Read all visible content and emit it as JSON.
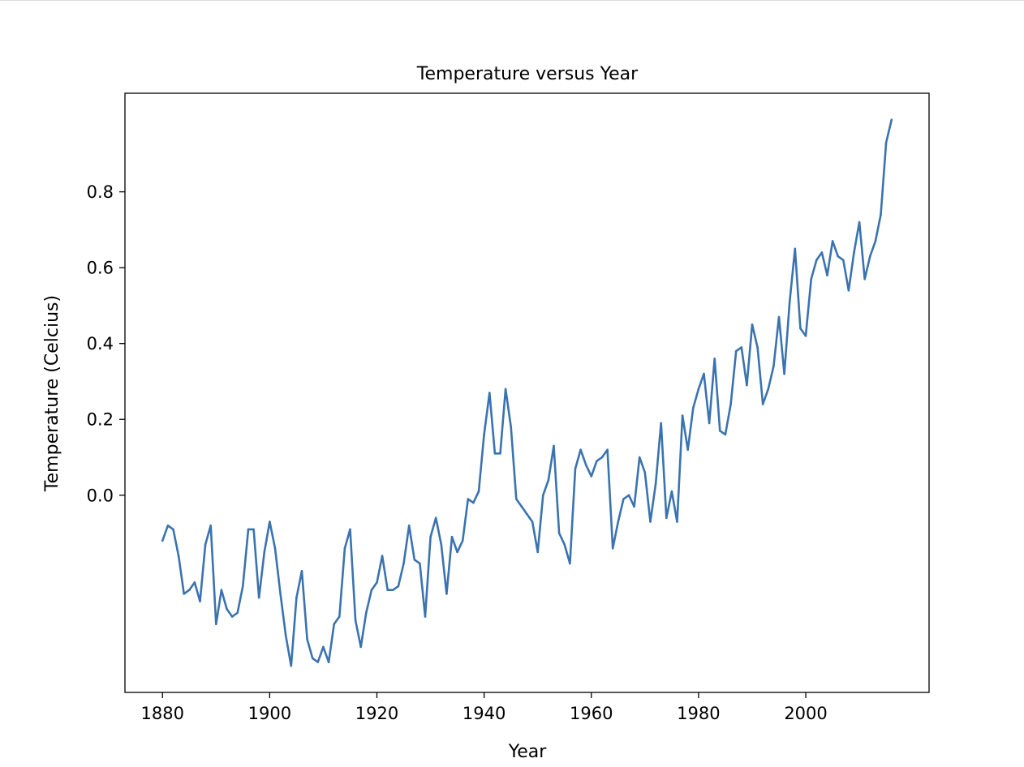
{
  "chart_data": {
    "type": "line",
    "title": "Temperature versus Year",
    "xlabel": "Year",
    "ylabel": "Temperature (Celcius)",
    "xlim": [
      1873,
      2023
    ],
    "ylim": [
      -0.52,
      1.06
    ],
    "x_ticks": [
      1880,
      1900,
      1920,
      1940,
      1960,
      1980,
      2000
    ],
    "x_tick_labels": [
      "1880",
      "1900",
      "1920",
      "1940",
      "1960",
      "1980",
      "2000"
    ],
    "y_ticks": [
      0.0,
      0.2,
      0.4,
      0.6,
      0.8
    ],
    "y_tick_labels": [
      "0.0",
      "0.2",
      "0.4",
      "0.6",
      "0.8"
    ],
    "grid": false,
    "colors": {
      "line": "#3a73b0",
      "axes": "#000000"
    },
    "series": [
      {
        "x": [
          1880,
          1881,
          1882,
          1883,
          1884,
          1885,
          1886,
          1887,
          1888,
          1889,
          1890,
          1891,
          1892,
          1893,
          1894,
          1895,
          1896,
          1897,
          1898,
          1899,
          1900,
          1901,
          1902,
          1903,
          1904,
          1905,
          1906,
          1907,
          1908,
          1909,
          1910,
          1911,
          1912,
          1913,
          1914,
          1915,
          1916,
          1917,
          1918,
          1919,
          1920,
          1921,
          1922,
          1923,
          1924,
          1925,
          1926,
          1927,
          1928,
          1929,
          1930,
          1931,
          1932,
          1933,
          1934,
          1935,
          1936,
          1937,
          1938,
          1939,
          1940,
          1941,
          1942,
          1943,
          1944,
          1945,
          1946,
          1947,
          1948,
          1949,
          1950,
          1951,
          1952,
          1953,
          1954,
          1955,
          1956,
          1957,
          1958,
          1959,
          1960,
          1961,
          1962,
          1963,
          1964,
          1965,
          1966,
          1967,
          1968,
          1969,
          1970,
          1971,
          1972,
          1973,
          1974,
          1975,
          1976,
          1977,
          1978,
          1979,
          1980,
          1981,
          1982,
          1983,
          1984,
          1985,
          1986,
          1987,
          1988,
          1989,
          1990,
          1991,
          1992,
          1993,
          1994,
          1995,
          1996,
          1997,
          1998,
          1999,
          2000,
          2001,
          2002,
          2003,
          2004,
          2005,
          2006,
          2007,
          2008,
          2009,
          2010,
          2011,
          2012,
          2013,
          2014,
          2015,
          2016
        ],
        "values": [
          -0.12,
          -0.08,
          -0.09,
          -0.16,
          -0.26,
          -0.25,
          -0.23,
          -0.28,
          -0.13,
          -0.08,
          -0.34,
          -0.25,
          -0.3,
          -0.32,
          -0.31,
          -0.24,
          -0.09,
          -0.09,
          -0.27,
          -0.15,
          -0.07,
          -0.14,
          -0.26,
          -0.37,
          -0.45,
          -0.27,
          -0.2,
          -0.38,
          -0.43,
          -0.44,
          -0.4,
          -0.44,
          -0.34,
          -0.32,
          -0.14,
          -0.09,
          -0.33,
          -0.4,
          -0.31,
          -0.25,
          -0.23,
          -0.16,
          -0.25,
          -0.25,
          -0.24,
          -0.18,
          -0.08,
          -0.17,
          -0.18,
          -0.32,
          -0.11,
          -0.06,
          -0.13,
          -0.26,
          -0.11,
          -0.15,
          -0.12,
          -0.01,
          -0.02,
          0.01,
          0.16,
          0.27,
          0.11,
          0.11,
          0.28,
          0.18,
          -0.01,
          -0.03,
          -0.05,
          -0.07,
          -0.15,
          0.0,
          0.04,
          0.13,
          -0.1,
          -0.13,
          -0.18,
          0.07,
          0.12,
          0.08,
          0.05,
          0.09,
          0.1,
          0.12,
          -0.14,
          -0.07,
          -0.01,
          0.0,
          -0.03,
          0.1,
          0.06,
          -0.07,
          0.03,
          0.19,
          -0.06,
          0.01,
          -0.07,
          0.21,
          0.12,
          0.23,
          0.28,
          0.32,
          0.19,
          0.36,
          0.17,
          0.16,
          0.24,
          0.38,
          0.39,
          0.29,
          0.45,
          0.39,
          0.24,
          0.28,
          0.34,
          0.47,
          0.32,
          0.51,
          0.65,
          0.44,
          0.42,
          0.57,
          0.62,
          0.64,
          0.58,
          0.67,
          0.63,
          0.62,
          0.54,
          0.64,
          0.72,
          0.57,
          0.63,
          0.67,
          0.74,
          0.93,
          0.99
        ]
      }
    ]
  }
}
